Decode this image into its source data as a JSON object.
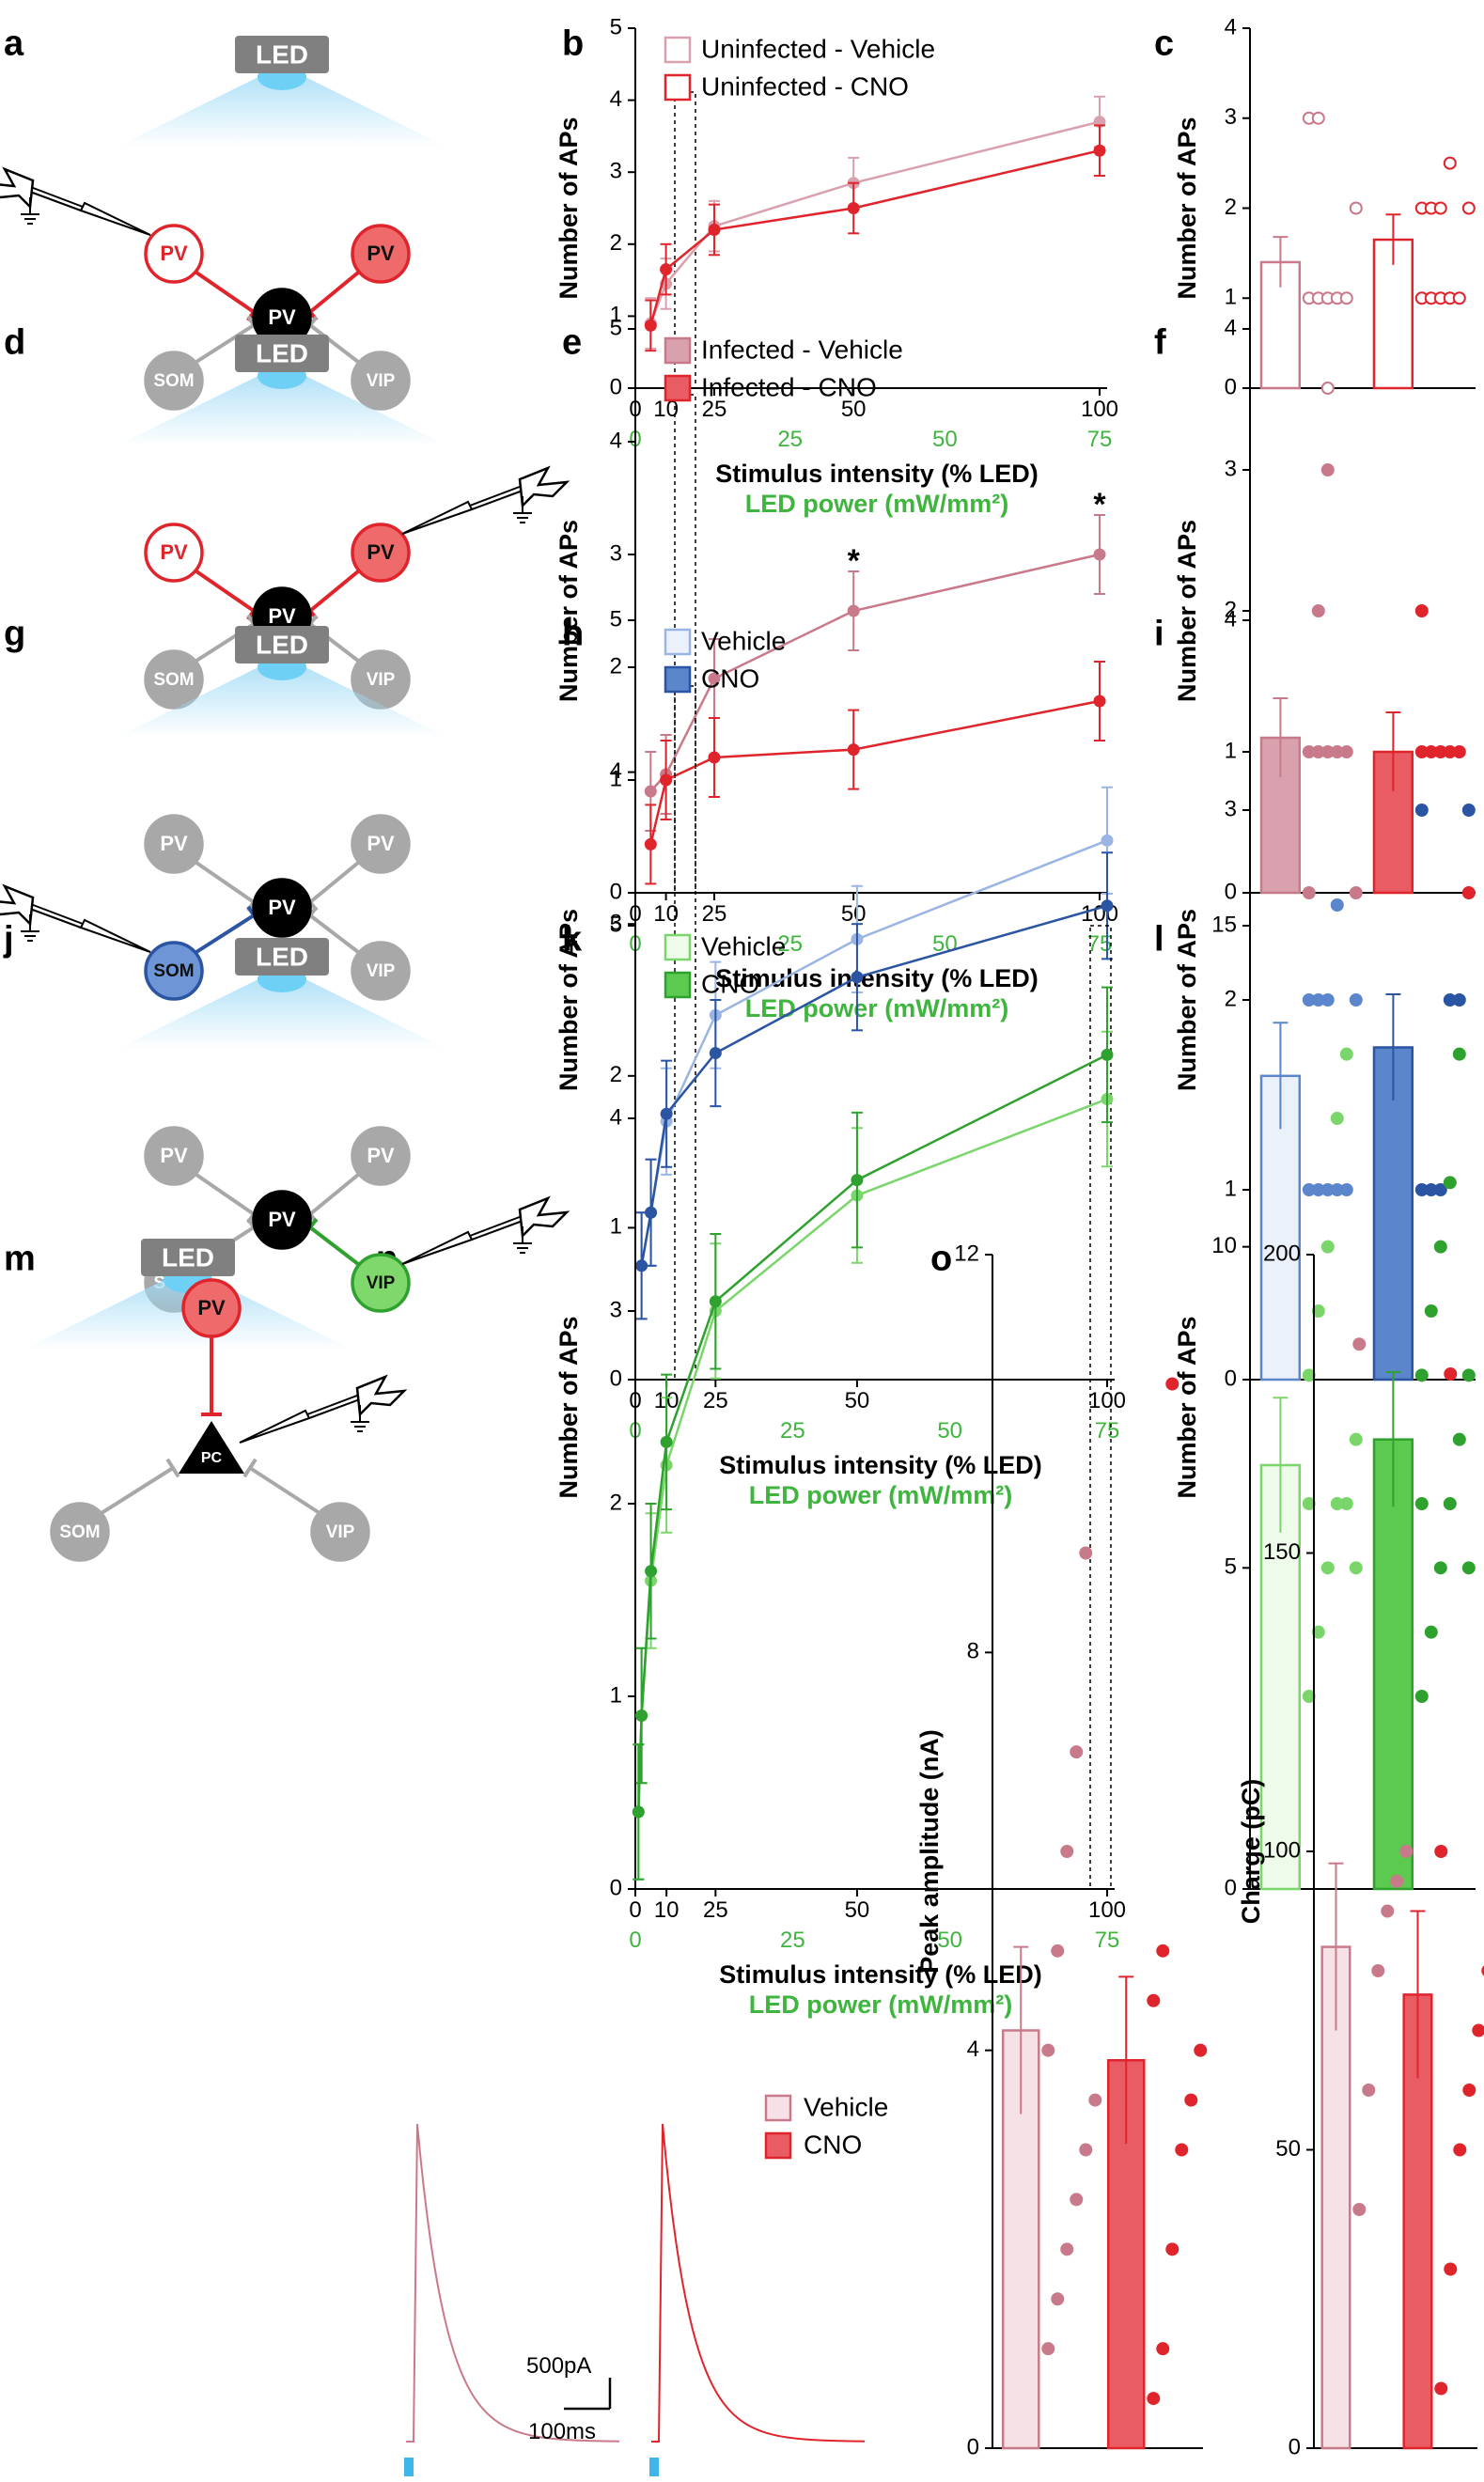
{
  "colors": {
    "red": "#e0242c",
    "pink": "#c97a8a",
    "pink_fill": "#d9a1ae",
    "pink_light": "#f6e2e6",
    "red_fill": "#ea5c64",
    "blue_dark": "#2b54a3",
    "blue_mid": "#5b86cc",
    "blue_light": "#eaf1fb",
    "green_dark": "#2ea12e",
    "green_light": "#7ad66a",
    "green_fill": "#5cc94f",
    "green_pale": "#eefaea",
    "gray": "#a8a8a8",
    "text_green": "#3fb53f",
    "led_glow": "#9fdaf5"
  },
  "panel_letters": [
    "a",
    "b",
    "c",
    "d",
    "e",
    "f",
    "g",
    "h",
    "i",
    "j",
    "k",
    "l",
    "m",
    "n",
    "o"
  ],
  "schematic": {
    "led": "LED",
    "cells": {
      "pv": "PV",
      "som": "SOM",
      "vip": "VIP",
      "pc": "PC"
    }
  },
  "axes": {
    "y_label": "Number of APs",
    "x_label": "Stimulus intensity (% LED)",
    "x2_label": "LED power (mW/mm²)",
    "x_ticks": [
      "0",
      "10",
      "25",
      "50",
      "100"
    ],
    "x2_ticks": [
      "0",
      "25",
      "50",
      "75"
    ],
    "y_ticks_5": [
      "0",
      "1",
      "2",
      "3",
      "4"
    ],
    "y_ticks_4": [
      "0",
      "1",
      "2",
      "3",
      "4"
    ],
    "y_ticks_l": [
      "0",
      "5",
      "10",
      "15"
    ],
    "star": "*"
  },
  "legends": {
    "b": [
      "Uninfected - Vehicle",
      "Uninfected - CNO"
    ],
    "e": [
      "Infected - Vehicle",
      "Infected - CNO"
    ],
    "h": [
      "Vehicle",
      "CNO"
    ],
    "k": [
      "Vehicle",
      "CNO"
    ],
    "n": [
      "Vehicle",
      "CNO"
    ]
  },
  "scalebar": {
    "current": "500pA",
    "time": "100ms"
  },
  "panel_o": {
    "left_ylabel": "Peak amplitude (nA)",
    "left_ticks": [
      "0",
      "4",
      "8",
      "12"
    ],
    "right_ylabel": "Charge (pC)",
    "right_ticks": [
      "0",
      "50",
      "100",
      "150",
      "200"
    ]
  },
  "chart_data": [
    {
      "panel": "b",
      "type": "line",
      "x": [
        5,
        10,
        25,
        50,
        100
      ],
      "xlabel": "Stimulus intensity (% LED)",
      "ylabel": "Number of APs",
      "ylim": [
        0,
        5
      ],
      "series": [
        {
          "name": "Uninfected - Vehicle",
          "values": [
            0.9,
            1.45,
            2.25,
            2.85,
            3.7
          ]
        },
        {
          "name": "Uninfected - CNO",
          "values": [
            0.87,
            1.65,
            2.2,
            2.5,
            3.3
          ]
        }
      ]
    },
    {
      "panel": "c",
      "type": "bar",
      "ylabel": "Number of APs",
      "ylim": [
        0,
        4
      ],
      "values": [
        1.4,
        1.65
      ]
    },
    {
      "panel": "e",
      "type": "line",
      "x": [
        5,
        10,
        25,
        50,
        100
      ],
      "xlabel": "Stimulus intensity (% LED)",
      "ylabel": "Number of APs",
      "ylim": [
        0,
        5
      ],
      "series": [
        {
          "name": "Infected - Vehicle",
          "values": [
            0.9,
            1.05,
            1.9,
            2.5,
            3.0
          ]
        },
        {
          "name": "Infected - CNO",
          "values": [
            0.43,
            1.0,
            1.2,
            1.27,
            1.7
          ]
        }
      ]
    },
    {
      "panel": "f",
      "type": "bar",
      "ylabel": "Number of APs",
      "ylim": [
        0,
        4
      ],
      "values": [
        1.1,
        1.0
      ]
    },
    {
      "panel": "h",
      "type": "line",
      "x": [
        2,
        5,
        10,
        25,
        50,
        100
      ],
      "xlabel": "Stimulus intensity (% LED)",
      "ylabel": "Number of APs",
      "ylim": [
        0,
        5
      ],
      "series": [
        {
          "name": "Vehicle",
          "values": [
            0.75,
            1.1,
            1.7,
            2.4,
            2.9,
            3.55
          ]
        },
        {
          "name": "CNO",
          "values": [
            0.75,
            1.1,
            1.75,
            2.15,
            2.65,
            3.12
          ]
        }
      ]
    },
    {
      "panel": "i",
      "type": "bar",
      "ylabel": "Number of APs",
      "ylim": [
        0,
        4
      ],
      "values": [
        1.6,
        1.75
      ]
    },
    {
      "panel": "k",
      "type": "line",
      "x": [
        1,
        2,
        5,
        10,
        25,
        50,
        100
      ],
      "xlabel": "Stimulus intensity (% LED)",
      "ylabel": "Number of APs",
      "ylim": [
        0,
        5
      ],
      "series": [
        {
          "name": "Vehicle",
          "values": [
            0.4,
            0.9,
            1.6,
            2.2,
            3.0,
            3.6,
            4.1
          ]
        },
        {
          "name": "CNO",
          "values": [
            0.4,
            0.9,
            1.65,
            2.32,
            3.05,
            3.68,
            4.33
          ]
        }
      ]
    },
    {
      "panel": "l",
      "type": "bar",
      "ylabel": "Number of APs",
      "ylim": [
        0,
        15
      ],
      "values": [
        6.6,
        7.0
      ]
    },
    {
      "panel": "o-left",
      "type": "bar",
      "ylabel": "Peak amplitude (nA)",
      "ylim": [
        0,
        12
      ],
      "values": [
        4.2,
        3.9
      ]
    },
    {
      "panel": "o-right",
      "type": "bar",
      "ylabel": "Charge (pC)",
      "ylim": [
        0,
        200
      ],
      "values": [
        84,
        76
      ]
    }
  ]
}
